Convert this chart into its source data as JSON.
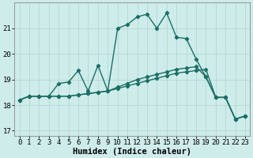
{
  "xlabel": "Humidex (Indice chaleur)",
  "background_color": "#ceecea",
  "grid_color": "#add4d0",
  "line_color": "#1a6e65",
  "xlim": [
    -0.5,
    23.5
  ],
  "ylim": [
    16.8,
    22.0
  ],
  "yticks": [
    17,
    18,
    19,
    20,
    21
  ],
  "xticks": [
    0,
    1,
    2,
    3,
    4,
    5,
    6,
    7,
    8,
    9,
    10,
    11,
    12,
    13,
    14,
    15,
    16,
    17,
    18,
    19,
    20,
    21,
    22,
    23
  ],
  "series1_x": [
    0,
    1,
    2,
    3,
    4,
    5,
    6,
    7,
    8,
    9,
    10,
    11,
    12,
    13,
    14,
    15,
    16,
    17,
    18,
    19,
    20,
    21,
    22,
    23
  ],
  "series1_y": [
    18.2,
    18.35,
    18.35,
    18.35,
    18.35,
    18.35,
    18.4,
    18.45,
    18.5,
    18.55,
    18.65,
    18.75,
    18.85,
    18.95,
    19.05,
    19.15,
    19.25,
    19.3,
    19.35,
    19.4,
    18.3,
    18.3,
    17.45,
    17.58
  ],
  "series2_x": [
    0,
    1,
    2,
    3,
    4,
    5,
    6,
    7,
    8,
    9,
    10,
    11,
    12,
    13,
    14,
    15,
    16,
    17,
    18,
    19,
    20,
    21,
    22,
    23
  ],
  "series2_y": [
    18.2,
    18.35,
    18.35,
    18.35,
    18.35,
    18.35,
    18.4,
    18.45,
    18.5,
    18.55,
    18.7,
    18.85,
    19.0,
    19.1,
    19.2,
    19.3,
    19.4,
    19.45,
    19.5,
    19.1,
    18.3,
    18.3,
    17.45,
    17.58
  ],
  "series3_x": [
    0,
    1,
    2,
    3,
    4,
    5,
    6,
    7,
    8,
    9,
    10,
    11,
    12,
    13,
    14,
    15,
    16,
    17,
    18,
    19,
    20,
    21,
    22,
    23
  ],
  "series3_y": [
    18.2,
    18.35,
    18.35,
    18.35,
    18.85,
    18.9,
    19.35,
    18.55,
    19.55,
    18.55,
    21.0,
    21.15,
    21.45,
    21.55,
    21.0,
    21.6,
    20.65,
    20.6,
    19.8,
    19.1,
    18.3,
    18.3,
    17.45,
    17.58
  ],
  "xlabel_fontsize": 7.5,
  "tick_fontsize": 6.5,
  "linewidth": 1.0,
  "marker_size": 2.2,
  "marker": "D"
}
